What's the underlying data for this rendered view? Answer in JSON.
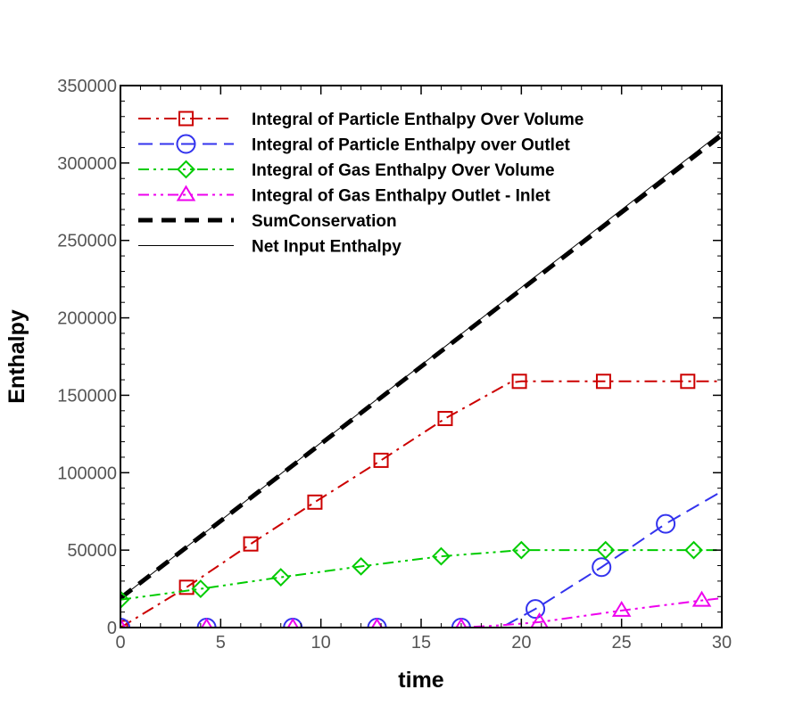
{
  "chart_data": {
    "type": "line",
    "xlabel": "time",
    "ylabel": "Enthalpy",
    "xlim": [
      0,
      30
    ],
    "ylim": [
      0,
      350000
    ],
    "xticks": [
      0,
      5,
      10,
      15,
      20,
      25,
      30
    ],
    "yticks": [
      0,
      50000,
      100000,
      150000,
      200000,
      250000,
      300000,
      350000
    ],
    "xtick_labels": [
      "0",
      "5",
      "10",
      "15",
      "20",
      "25",
      "30"
    ],
    "ytick_labels": [
      "0",
      "50000",
      "100000",
      "150000",
      "200000",
      "250000",
      "300000",
      "350000"
    ],
    "grid": false,
    "legend_position": "top-left",
    "series": [
      {
        "name": "Integral of Particle Enthalpy Over Volume",
        "color": "#cc0000",
        "marker": "square",
        "dash": "dashdot",
        "x": [
          0,
          3.3,
          6.5,
          9.7,
          13.0,
          16.2,
          19.4,
          20.0,
          24.0,
          28.0,
          30.0
        ],
        "y": [
          0,
          26000,
          54000,
          81000,
          108000,
          135000,
          158000,
          159000,
          159000,
          159000,
          159000
        ],
        "marker_x": [
          0,
          3.3,
          6.5,
          9.7,
          13.0,
          16.2,
          19.9,
          24.1,
          28.3
        ],
        "marker_y": [
          0,
          26000,
          54000,
          81000,
          108000,
          135000,
          159000,
          159000,
          159000
        ]
      },
      {
        "name": "Integral of Particle Enthalpy over Outlet",
        "color": "#3333ee",
        "marker": "circle",
        "dash": "longdash",
        "x": [
          0,
          4.3,
          8.6,
          12.8,
          17.0,
          19.0,
          20.7,
          24.0,
          27.2,
          30.0
        ],
        "y": [
          0,
          0,
          0,
          0,
          0,
          0,
          12000,
          39000,
          67000,
          88000
        ],
        "marker_x": [
          0,
          4.3,
          8.6,
          12.8,
          17.0,
          20.7,
          24.0,
          27.2
        ],
        "marker_y": [
          0,
          0,
          0,
          0,
          0,
          12000,
          39000,
          67000
        ]
      },
      {
        "name": "Integral of Gas Enthalpy Over Volume",
        "color": "#00cc00",
        "marker": "diamond",
        "dash": "dashdotdot",
        "x": [
          0,
          4.0,
          8.0,
          12.0,
          16.0,
          20.0,
          24.2,
          28.6,
          30.0
        ],
        "y": [
          18000,
          25000,
          32500,
          39500,
          46000,
          50000,
          50000,
          50000,
          50000
        ],
        "marker_x": [
          0,
          4.0,
          8.0,
          12.0,
          16.0,
          20.0,
          24.2,
          28.6
        ],
        "marker_y": [
          18000,
          25000,
          32500,
          39500,
          46000,
          50000,
          50000,
          50000
        ]
      },
      {
        "name": "Integral of Gas Enthalpy Outlet - Inlet",
        "color": "#ee00ee",
        "marker": "triangle",
        "dash": "dashdotdot",
        "x": [
          0,
          4.3,
          8.6,
          12.8,
          17.0,
          19.0,
          20.9,
          25.0,
          29.0,
          30.0
        ],
        "y": [
          0,
          0,
          0,
          0,
          0,
          1500,
          3500,
          11000,
          17500,
          19000
        ],
        "marker_x": [
          0,
          4.3,
          8.6,
          12.8,
          17.0,
          20.9,
          25.0,
          29.0
        ],
        "marker_y": [
          0,
          0,
          0,
          0,
          0,
          3500,
          11000,
          17500
        ]
      },
      {
        "name": "SumConservation",
        "color": "#000000",
        "marker": "none",
        "dash": "thickdash",
        "x": [
          0,
          30
        ],
        "y": [
          19000,
          318000
        ]
      },
      {
        "name": "Net Input Enthalpy",
        "color": "#000000",
        "marker": "none",
        "dash": "solid",
        "x": [
          0,
          30
        ],
        "y": [
          19000,
          320000
        ]
      }
    ]
  }
}
